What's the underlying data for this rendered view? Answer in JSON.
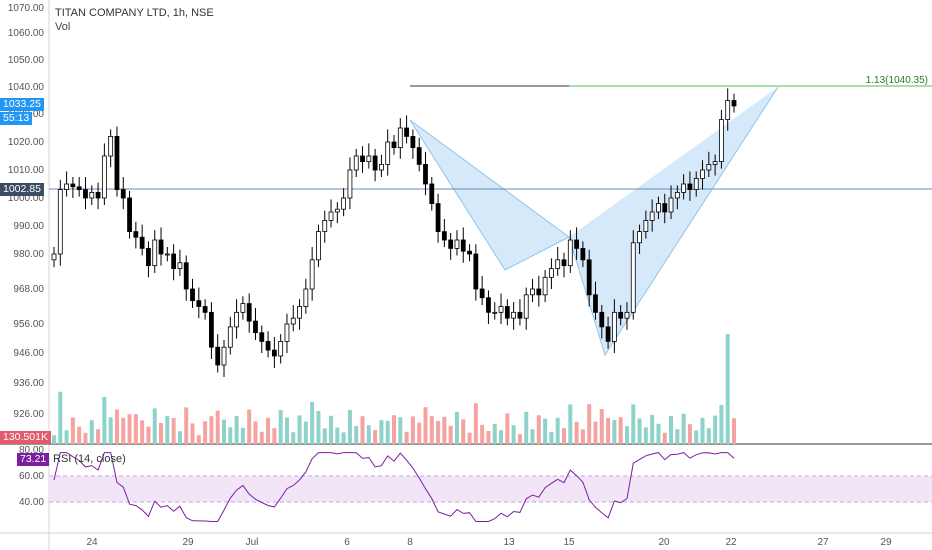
{
  "header": {
    "symbol_title": "TITAN COMPANY LTD, 1h, NSE",
    "volume_label": "Vol"
  },
  "price_axis": {
    "labels": [
      "1070.00",
      "1060.00",
      "1050.00",
      "1040.00",
      "1030.00",
      "1020.00",
      "1010.00",
      "1000.00",
      "990.00",
      "980.00",
      "968.00",
      "956.00",
      "946.00",
      "936.00",
      "926.00"
    ],
    "values": [
      1070,
      1060,
      1050,
      1040,
      1030,
      1020,
      1010,
      1000,
      990,
      980,
      968,
      956,
      946,
      936,
      926
    ]
  },
  "rsi_axis": {
    "labels": [
      "80.00",
      "60.00",
      "40.00"
    ],
    "values": [
      80,
      60,
      40
    ]
  },
  "time_axis": {
    "labels": [
      "24",
      "29",
      "Jul",
      "6",
      "8",
      "13",
      "15",
      "20",
      "22",
      "27",
      "29"
    ]
  },
  "tags": {
    "last_price": "1033.25",
    "countdown": "55:13",
    "hline_price": "1002.85",
    "volume_value": "130.501K",
    "rsi_value": "73.21"
  },
  "target_label": "1.13(1040.35)",
  "rsi_title": "RSI (14, close)",
  "colors": {
    "up": "#26a69a",
    "down": "#ef5350",
    "candle": "#000000",
    "vol_up": "#8fd2c9",
    "vol_down": "#f4a3a0",
    "pattern_fill": "#b3d7f5",
    "rsi_line": "#7b1fa2",
    "rsi_band": "#f3e5f8",
    "price_tag": "#2196f3",
    "hline": "#6a8ab3",
    "target_line": "#77cc77"
  },
  "chart_data": {
    "type": "candlestick",
    "title": "TITAN COMPANY LTD, 1h, NSE",
    "ylim": [
      926,
      1070
    ],
    "last_price": 1033.25,
    "horizontal_line": 1002.85,
    "target": 1040.35,
    "pattern": "harmonic (bat-style) XABCD",
    "rsi_period": 14,
    "rsi_last": 73.21,
    "volume_last": "130.501K",
    "candles_close": [
      980,
      1003,
      1005,
      1004,
      1003,
      1000,
      1002,
      1000,
      1015,
      1022,
      1003,
      1000,
      988,
      986,
      982,
      976,
      985,
      980,
      980,
      975,
      977,
      968,
      964,
      962,
      960,
      948,
      942,
      948,
      955,
      960,
      963,
      957,
      953,
      950,
      947,
      945,
      950,
      956,
      958,
      962,
      968,
      978,
      988,
      992,
      995,
      996,
      1000,
      1010,
      1015,
      1013,
      1015,
      1010,
      1012,
      1020,
      1018,
      1025,
      1022,
      1018,
      1012,
      1005,
      998,
      988,
      985,
      982,
      985,
      981,
      980,
      968,
      965,
      960,
      960,
      962,
      958,
      960,
      958,
      966,
      968,
      966,
      972,
      975,
      978,
      976,
      985,
      982,
      978,
      966,
      960,
      955,
      950,
      960,
      958,
      960,
      984,
      988,
      992,
      995,
      998,
      995,
      1000,
      1002,
      1005,
      1003,
      1007,
      1010,
      1012,
      1013,
      1028,
      1035,
      1033
    ]
  }
}
